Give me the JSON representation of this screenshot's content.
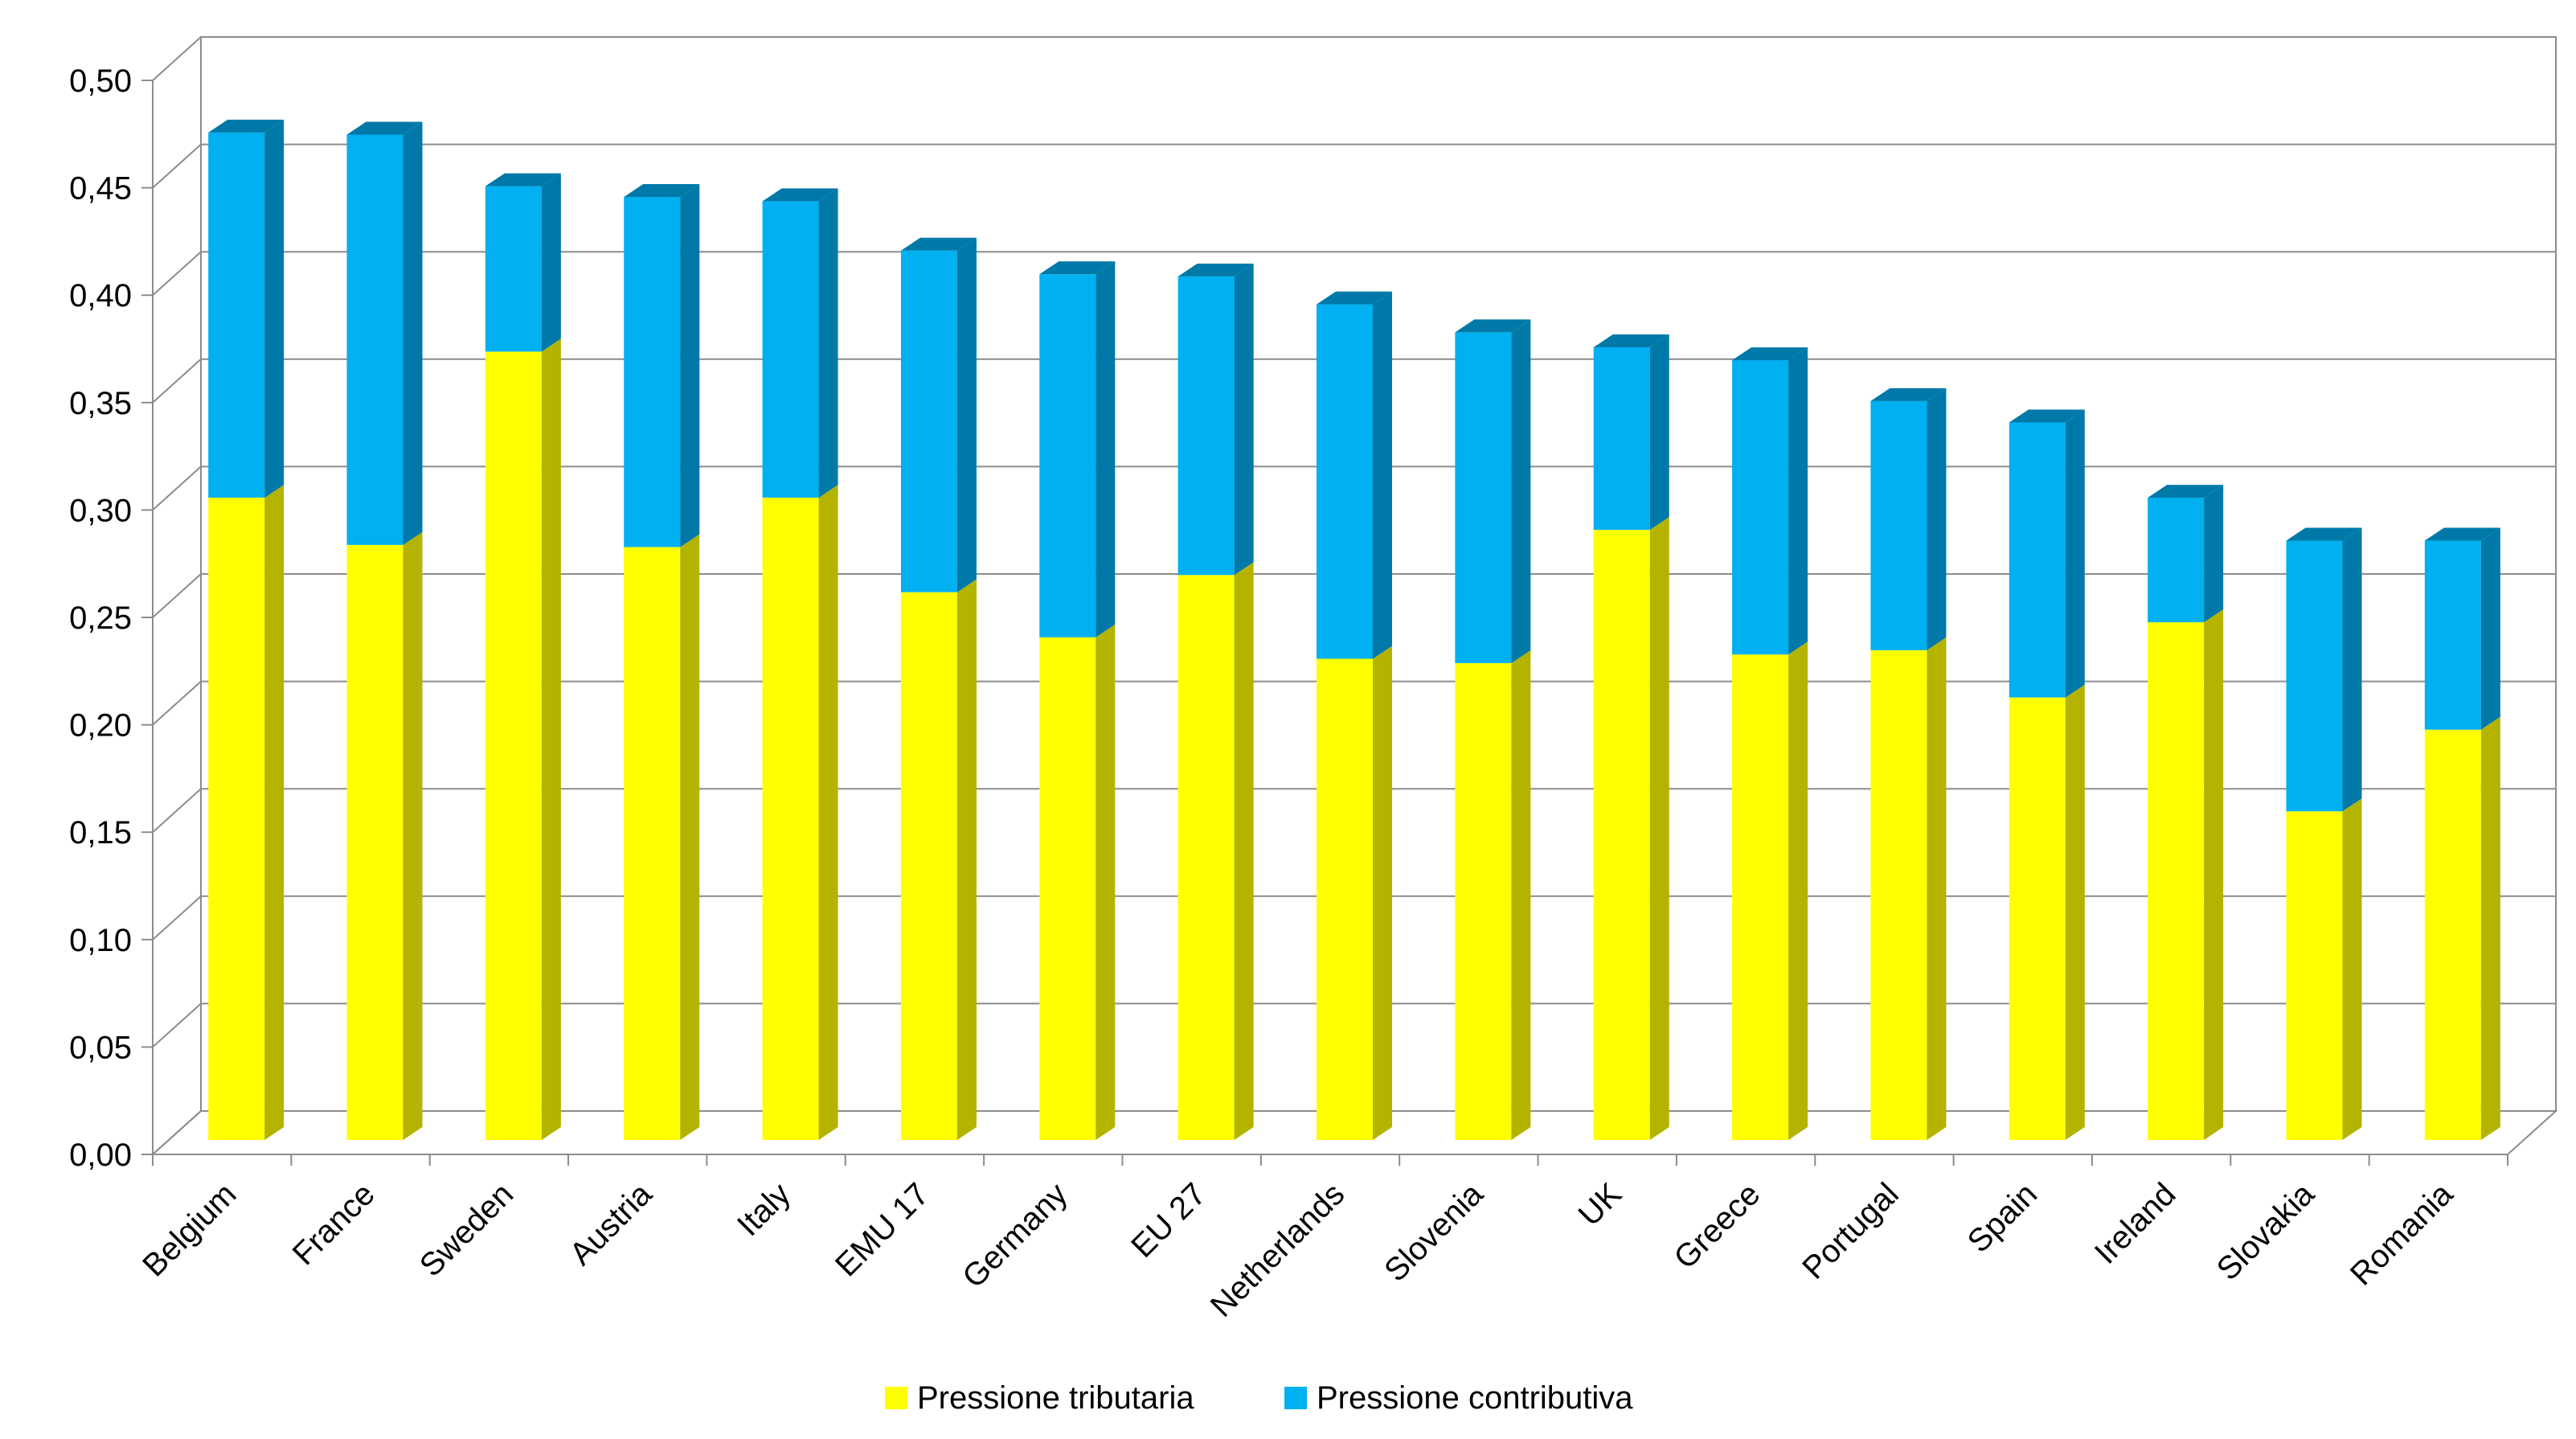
{
  "chart_data": {
    "type": "bar",
    "stacked": true,
    "three_d": true,
    "categories": [
      "Belgium",
      "France",
      "Sweden",
      "Austria",
      "Italy",
      "EMU 17",
      "Germany",
      "EU 27",
      "Netherlands",
      "Slovenia",
      "UK",
      "Greece",
      "Portugal",
      "Spain",
      "Ireland",
      "Slovakia",
      "Romania"
    ],
    "series": [
      {
        "name": "Pressione tributaria",
        "color": "#FFFF00",
        "side_color": "#B3B300",
        "values": [
          0.299,
          0.277,
          0.367,
          0.276,
          0.299,
          0.255,
          0.234,
          0.263,
          0.224,
          0.222,
          0.284,
          0.226,
          0.228,
          0.206,
          0.241,
          0.153,
          0.191
        ]
      },
      {
        "name": "Pressione contributiva",
        "color": "#00B0F0",
        "side_color": "#0079A8",
        "values": [
          0.17,
          0.191,
          0.077,
          0.163,
          0.138,
          0.159,
          0.169,
          0.139,
          0.165,
          0.154,
          0.085,
          0.137,
          0.116,
          0.128,
          0.058,
          0.126,
          0.088
        ]
      }
    ],
    "ylim": [
      0,
      0.5
    ],
    "yticks": [
      "0,00",
      "0,05",
      "0,10",
      "0,15",
      "0,20",
      "0,25",
      "0,30",
      "0,35",
      "0,40",
      "0,45",
      "0,50"
    ],
    "grid": true,
    "legend_position": "bottom",
    "title": "",
    "xlabel": "",
    "ylabel": ""
  }
}
